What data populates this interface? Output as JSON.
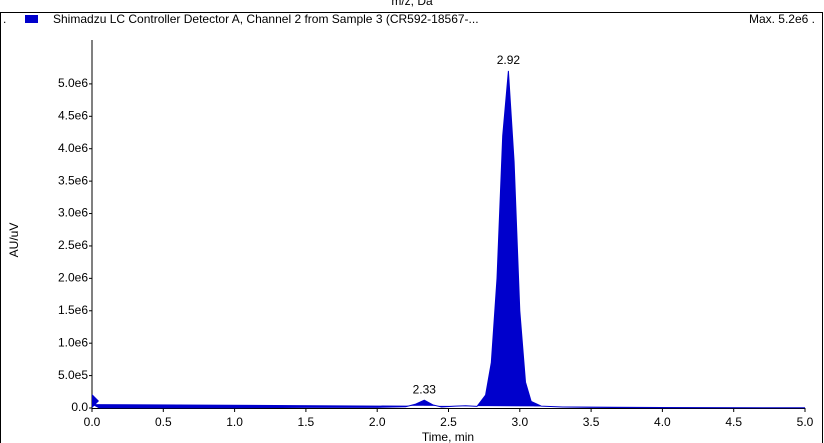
{
  "chart_data": {
    "type": "area",
    "top_axis_label": "m/z, Da",
    "legend_prefix": ".",
    "max_label": "Max. 5.2e6 .",
    "xlabel": "Time, min",
    "ylabel": "AU/uV",
    "xlim": [
      0,
      5
    ],
    "ylim": [
      0,
      5600000
    ],
    "xticks": [
      {
        "value": 0,
        "label": "0.0"
      },
      0.5,
      {
        "value": 1,
        "label": "1.0"
      },
      1.5,
      {
        "value": 2,
        "label": "2.0"
      },
      2.5,
      {
        "value": 3,
        "label": "3.0"
      },
      3.5,
      {
        "value": 4,
        "label": "4.0"
      },
      4.5,
      {
        "value": 5,
        "label": "5.0"
      }
    ],
    "yticks": [
      {
        "value": 0,
        "label": "0.0"
      },
      {
        "value": 500000,
        "label": "5.0e5"
      },
      {
        "value": 1000000,
        "label": "1.0e6"
      },
      {
        "value": 1500000,
        "label": "1.5e6"
      },
      {
        "value": 2000000,
        "label": "2.0e6"
      },
      {
        "value": 2500000,
        "label": "2.5e6"
      },
      {
        "value": 3000000,
        "label": "3.0e6"
      },
      {
        "value": 3500000,
        "label": "3.5e6"
      },
      {
        "value": 4000000,
        "label": "4.0e6"
      },
      {
        "value": 4500000,
        "label": "4.5e6"
      },
      {
        "value": 5000000,
        "label": "5.0e6"
      }
    ],
    "x": [
      0,
      0.05,
      0.5,
      1.0,
      1.5,
      2.0,
      2.2,
      2.27,
      2.33,
      2.39,
      2.45,
      2.55,
      2.62,
      2.7,
      2.76,
      2.8,
      2.84,
      2.88,
      2.92,
      2.96,
      3.0,
      3.04,
      3.08,
      3.15,
      3.3,
      3.5,
      4.0,
      5.0
    ],
    "series": [
      {
        "name": "Shimadzu LC Controller Detector A, Channel 2 from Sample 3 (CR592-18567-...",
        "color": "#0000cc",
        "values": [
          60000,
          5000,
          5000,
          5000,
          10000,
          10000,
          20000,
          60000,
          120000,
          50000,
          15000,
          30000,
          35000,
          25000,
          200000,
          700000,
          2000000,
          4200000,
          5200000,
          3800000,
          1500000,
          400000,
          100000,
          30000,
          15000,
          10000,
          5000,
          5000
        ]
      }
    ],
    "peak_labels": [
      2.33,
      2.92
    ]
  }
}
